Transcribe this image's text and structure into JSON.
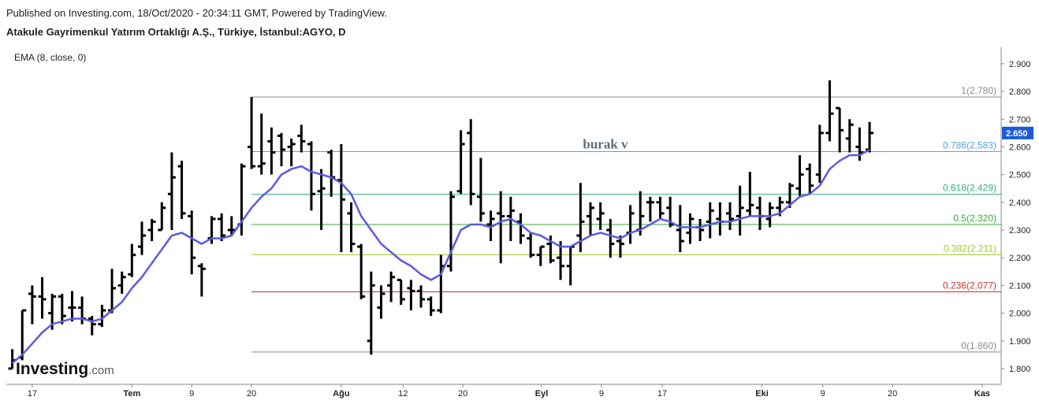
{
  "header": {
    "published": "Published on Investing.com, 18/Oct/2020 - 20:34:11 GMT, Powered by TradingView.",
    "symbol": "Atakule Gayrimenkul Yatırım Ortaklığı A.Ş., Türkiye, İstanbul:AGYO, D"
  },
  "logo": {
    "brand": "Investing",
    "suffix": ".com"
  },
  "chart_data": {
    "type": "ohlc",
    "indicator": "EMA (8, close, 0)",
    "annotation": "burak v",
    "color": "#000000",
    "ema_color": "#5b5be0",
    "ylim": [
      1.743,
      2.931
    ],
    "yticks": [
      {
        "value": 1.8,
        "label": "1.800"
      },
      {
        "value": 1.9,
        "label": "1.900"
      },
      {
        "value": 2.0,
        "label": "2.000"
      },
      {
        "value": 2.1,
        "label": "2.100"
      },
      {
        "value": 2.2,
        "label": "2.200"
      },
      {
        "value": 2.3,
        "label": "2.300"
      },
      {
        "value": 2.4,
        "label": "2.400"
      },
      {
        "value": 2.5,
        "label": "2.500"
      },
      {
        "value": 2.6,
        "label": "2.600"
      },
      {
        "value": 2.7,
        "label": "2.700"
      },
      {
        "value": 2.8,
        "label": "2.800"
      },
      {
        "value": 2.9,
        "label": "2.900"
      }
    ],
    "xlim": [
      -0.6,
      99.2
    ],
    "xticks": [
      {
        "value": 2,
        "label": "17"
      },
      {
        "value": 12,
        "label": "Tem"
      },
      {
        "value": 18,
        "label": "9"
      },
      {
        "value": 24,
        "label": "20"
      },
      {
        "value": 33,
        "label": "Ağu"
      },
      {
        "value": 39.2,
        "label": "12"
      },
      {
        "value": 45.2,
        "label": "20"
      },
      {
        "value": 53.1,
        "label": "Eyl"
      },
      {
        "value": 59.1,
        "label": "9"
      },
      {
        "value": 65.2,
        "label": "17"
      },
      {
        "value": 75.2,
        "label": "Eki"
      },
      {
        "value": 81.3,
        "label": "9"
      },
      {
        "value": 88.3,
        "label": "20"
      },
      {
        "value": 97.3,
        "label": "Kas"
      }
    ],
    "last_price": {
      "value": 2.65,
      "label": "2.650",
      "color": "#1e5bd6"
    },
    "open": [
      1.8,
      1.84,
      2.07,
      2.06,
      2.0,
      2.06,
      2.02,
      2.02,
      1.98,
      1.96,
      2.01,
      2.1,
      2.14,
      2.24,
      2.3,
      2.3,
      2.43,
      2.53,
      2.35,
      2.17,
      2.27,
      2.34,
      2.3,
      2.32,
      2.6,
      2.53,
      2.62,
      2.64,
      2.6,
      2.64,
      2.61,
      2.44,
      2.58,
      2.48,
      2.36,
      2.24,
      1.9,
      2.02,
      2.1,
      2.12,
      2.09,
      2.08,
      2.05,
      2.01,
      2.17,
      2.44,
      2.65,
      2.42,
      2.32,
      2.36,
      2.35,
      2.33,
      2.27,
      2.21,
      2.25,
      2.2,
      2.17,
      2.28,
      2.35,
      2.34,
      2.3,
      2.26,
      2.29,
      2.3,
      2.4,
      2.4,
      2.38,
      2.3,
      2.29,
      2.31,
      2.33,
      2.34,
      2.36,
      2.35,
      2.37,
      2.38,
      2.34,
      2.38,
      2.4,
      2.45,
      2.52,
      2.5,
      2.65,
      2.74,
      2.63,
      2.6,
      2.59
    ],
    "high": [
      1.87,
      2.01,
      2.1,
      2.13,
      2.07,
      2.07,
      2.08,
      2.06,
      1.99,
      2.03,
      2.16,
      2.15,
      2.25,
      2.33,
      2.34,
      2.4,
      2.58,
      2.55,
      2.37,
      2.18,
      2.35,
      2.36,
      2.35,
      2.54,
      2.78,
      2.72,
      2.67,
      2.65,
      2.63,
      2.68,
      2.62,
      2.52,
      2.59,
      2.61,
      2.4,
      2.25,
      2.15,
      2.1,
      2.15,
      2.12,
      2.12,
      2.1,
      2.06,
      2.21,
      2.44,
      2.66,
      2.7,
      2.56,
      2.37,
      2.44,
      2.42,
      2.36,
      2.29,
      2.24,
      2.28,
      2.26,
      2.24,
      2.47,
      2.4,
      2.4,
      2.34,
      2.28,
      2.39,
      2.44,
      2.42,
      2.42,
      2.42,
      2.39,
      2.36,
      2.34,
      2.4,
      2.4,
      2.4,
      2.46,
      2.51,
      2.42,
      2.4,
      2.42,
      2.47,
      2.57,
      2.54,
      2.68,
      2.84,
      2.74,
      2.7,
      2.67,
      2.69
    ],
    "low": [
      1.8,
      1.83,
      1.96,
      1.98,
      1.94,
      1.96,
      1.97,
      1.96,
      1.92,
      1.95,
      2.0,
      2.07,
      2.13,
      2.21,
      2.26,
      2.3,
      2.3,
      2.34,
      2.14,
      2.06,
      2.25,
      2.26,
      2.28,
      2.28,
      2.52,
      2.5,
      2.5,
      2.53,
      2.53,
      2.58,
      2.37,
      2.3,
      2.42,
      2.22,
      2.22,
      2.05,
      1.85,
      1.98,
      2.04,
      2.03,
      2.01,
      2.02,
      1.99,
      2.0,
      2.15,
      2.43,
      2.39,
      2.33,
      2.26,
      2.18,
      2.26,
      2.25,
      2.2,
      2.17,
      2.18,
      2.12,
      2.1,
      2.22,
      2.28,
      2.3,
      2.2,
      2.2,
      2.25,
      2.28,
      2.33,
      2.34,
      2.31,
      2.22,
      2.25,
      2.26,
      2.27,
      2.28,
      2.3,
      2.28,
      2.35,
      2.3,
      2.31,
      2.35,
      2.38,
      2.42,
      2.43,
      2.47,
      2.62,
      2.58,
      2.58,
      2.55,
      2.58
    ],
    "close": [
      1.83,
      2.01,
      2.06,
      2.05,
      2.06,
      1.99,
      2.02,
      1.98,
      1.96,
      2.01,
      2.09,
      2.13,
      2.21,
      2.28,
      2.33,
      2.38,
      2.49,
      2.36,
      2.2,
      2.16,
      2.34,
      2.28,
      2.3,
      2.53,
      2.53,
      2.54,
      2.58,
      2.59,
      2.61,
      2.62,
      2.43,
      2.45,
      2.49,
      2.41,
      2.25,
      2.06,
      2.1,
      2.07,
      2.13,
      2.05,
      2.08,
      2.05,
      2.01,
      2.17,
      2.42,
      2.61,
      2.43,
      2.36,
      2.34,
      2.35,
      2.37,
      2.28,
      2.21,
      2.24,
      2.19,
      2.17,
      2.24,
      2.33,
      2.38,
      2.36,
      2.25,
      2.25,
      2.36,
      2.35,
      2.4,
      2.36,
      2.32,
      2.26,
      2.34,
      2.3,
      2.37,
      2.33,
      2.34,
      2.38,
      2.39,
      2.35,
      2.38,
      2.4,
      2.46,
      2.5,
      2.46,
      2.65,
      2.72,
      2.66,
      2.68,
      2.58,
      2.65
    ],
    "ema": [
      1.82,
      1.85,
      1.89,
      1.93,
      1.96,
      1.97,
      1.98,
      1.98,
      1.97,
      1.98,
      2.01,
      2.04,
      2.09,
      2.13,
      2.18,
      2.23,
      2.28,
      2.29,
      2.27,
      2.25,
      2.27,
      2.27,
      2.28,
      2.33,
      2.38,
      2.42,
      2.45,
      2.5,
      2.52,
      2.53,
      2.51,
      2.5,
      2.49,
      2.47,
      2.43,
      2.35,
      2.3,
      2.25,
      2.22,
      2.19,
      2.17,
      2.14,
      2.12,
      2.14,
      2.22,
      2.3,
      2.32,
      2.32,
      2.31,
      2.33,
      2.34,
      2.32,
      2.29,
      2.28,
      2.26,
      2.24,
      2.24,
      2.26,
      2.28,
      2.29,
      2.28,
      2.27,
      2.29,
      2.3,
      2.32,
      2.34,
      2.33,
      2.31,
      2.31,
      2.31,
      2.32,
      2.33,
      2.33,
      2.34,
      2.35,
      2.35,
      2.35,
      2.36,
      2.39,
      2.42,
      2.43,
      2.46,
      2.52,
      2.55,
      2.57,
      2.57,
      2.59
    ],
    "fib_start": 24,
    "fib_levels": [
      {
        "value": 2.78,
        "label": "1(2.780)",
        "color": "#8c8c8c"
      },
      {
        "value": 2.583,
        "label": "0.786(2.583)",
        "color": "#4ea6d6"
      },
      {
        "value": 2.429,
        "label": "0.618(2.429)",
        "color": "#2fb37e"
      },
      {
        "value": 2.32,
        "label": "0.5(2.320)",
        "color": "#3aa83a"
      },
      {
        "value": 2.211,
        "label": "0.382(2.211)",
        "color": "#9ccc2a"
      },
      {
        "value": 2.077,
        "label": "0.236(2.077)",
        "color": "#c83232"
      },
      {
        "value": 1.86,
        "label": "0(1.860)",
        "color": "#8c8c8c"
      }
    ]
  }
}
